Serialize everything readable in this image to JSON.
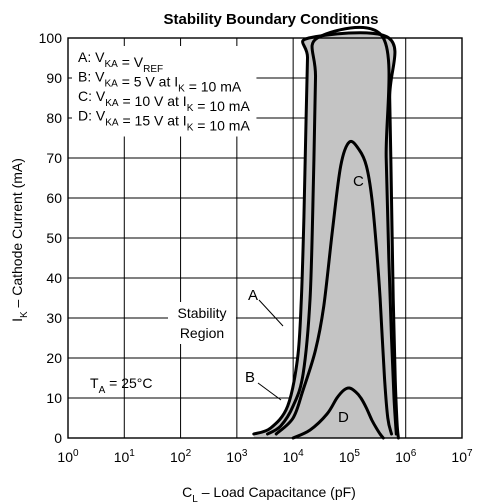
{
  "chart_data": {
    "type": "line",
    "title": "Stability Boundary Conditions",
    "xlabel": {
      "main": "C",
      "sub": "L",
      "rest": " – Load Capacitance (pF)"
    },
    "ylabel": {
      "main": "I",
      "sub": "K",
      "rest": " – Cathode Current (mA)"
    },
    "x_scale": "log",
    "xlim": [
      1,
      10000000
    ],
    "ylim": [
      0,
      100
    ],
    "x_ticks": [
      {
        "base": "10",
        "exp": "0",
        "value": 1
      },
      {
        "base": "10",
        "exp": "1",
        "value": 10
      },
      {
        "base": "10",
        "exp": "2",
        "value": 100
      },
      {
        "base": "10",
        "exp": "3",
        "value": 1000
      },
      {
        "base": "10",
        "exp": "4",
        "value": 10000
      },
      {
        "base": "10",
        "exp": "5",
        "value": 100000
      },
      {
        "base": "10",
        "exp": "6",
        "value": 1000000
      },
      {
        "base": "10",
        "exp": "7",
        "value": 10000000
      }
    ],
    "y_ticks": [
      "0",
      "10",
      "20",
      "30",
      "40",
      "50",
      "60",
      "70",
      "80",
      "90",
      "100"
    ],
    "grid": true,
    "legend": [
      {
        "label": "A: ",
        "parts": [
          [
            "V",
            "KA"
          ],
          [
            " = "
          ],
          [
            "V",
            "REF"
          ]
        ]
      },
      {
        "label": "B: ",
        "parts": [
          [
            "V",
            "KA"
          ],
          [
            " = 5 V at "
          ],
          [
            "I",
            "K"
          ],
          [
            " = 10 mA"
          ]
        ]
      },
      {
        "label": "C: ",
        "parts": [
          [
            "V",
            "KA"
          ],
          [
            " = 10 V at "
          ],
          [
            "I",
            "K"
          ],
          [
            " = 10 mA"
          ]
        ]
      },
      {
        "label": "D: ",
        "parts": [
          [
            "V",
            "KA"
          ],
          [
            " = 15 V at "
          ],
          [
            "I",
            "K"
          ],
          [
            " = 10 mA"
          ]
        ]
      }
    ],
    "series": [
      {
        "name": "A",
        "x": [
          2000,
          4000,
          8000,
          12000,
          14000,
          15500,
          17000,
          18000,
          19000,
          500000,
          520000,
          560000,
          600000,
          650000,
          700000,
          740000
        ],
        "y": [
          1,
          2.5,
          8,
          20,
          35,
          55,
          80,
          95,
          100,
          100,
          85,
          60,
          35,
          15,
          4,
          0
        ]
      },
      {
        "name": "B",
        "x": [
          3500,
          6000,
          10000,
          15000,
          20000,
          23000,
          25000,
          27000,
          400000,
          450000,
          500000,
          560000,
          620000,
          680000
        ],
        "y": [
          1,
          3,
          8,
          16,
          35,
          65,
          90,
          100,
          100,
          70,
          45,
          25,
          10,
          1
        ]
      },
      {
        "name": "C",
        "x": [
          5000,
          10000,
          15000,
          25000,
          35000,
          50000,
          70000,
          100000,
          150000,
          200000,
          250000,
          300000,
          350000,
          420000,
          480000,
          560000
        ],
        "y": [
          1,
          5,
          12,
          22,
          33,
          52,
          68,
          74,
          72,
          68,
          60,
          48,
          35,
          15,
          5,
          1
        ]
      },
      {
        "name": "D",
        "x": [
          10000,
          20000,
          40000,
          60000,
          80000,
          100000,
          130000,
          160000,
          200000,
          250000,
          300000,
          350000,
          400000
        ],
        "y": [
          0,
          2,
          6,
          10,
          12,
          12.5,
          11.5,
          10,
          7.5,
          4.5,
          2.5,
          1,
          0
        ]
      }
    ],
    "annotations": {
      "stability_region": [
        "Stability",
        "Region"
      ],
      "temperature": {
        "main": "T",
        "sub": "A",
        "rest": " = 25°C"
      },
      "curve_labels": [
        "A",
        "B",
        "C",
        "D"
      ]
    }
  }
}
